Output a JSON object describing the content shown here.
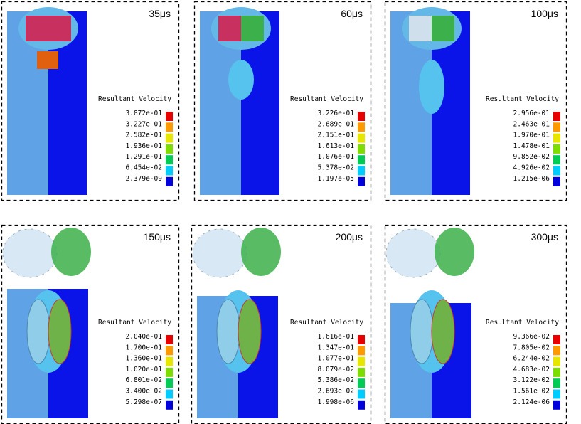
{
  "panels": [
    {
      "time": "35μs",
      "legend": {
        "title": "Resultant Velocity",
        "labels": [
          "3.872e-01",
          "3.227e-01",
          "2.582e-01",
          "1.936e-01",
          "1.291e-01",
          "6.454e-02",
          "2.379e-09"
        ]
      }
    },
    {
      "time": "60μs",
      "legend": {
        "title": "Resultant Velocity",
        "labels": [
          "3.226e-01",
          "2.689e-01",
          "2.151e-01",
          "1.613e-01",
          "1.076e-01",
          "5.378e-02",
          "1.197e-05"
        ]
      }
    },
    {
      "time": "100μs",
      "legend": {
        "title": "Resultant Velocity",
        "labels": [
          "2.956e-01",
          "2.463e-01",
          "1.970e-01",
          "1.478e-01",
          "9.852e-02",
          "4.926e-02",
          "1.215e-06"
        ]
      }
    },
    {
      "time": "150μs",
      "legend": {
        "title": "Resultant Velocity",
        "labels": [
          "2.040e-01",
          "1.700e-01",
          "1.360e-01",
          "1.020e-01",
          "6.801e-02",
          "3.400e-02",
          "5.298e-07"
        ]
      }
    },
    {
      "time": "200μs",
      "legend": {
        "title": "Resultant Velocity",
        "labels": [
          "1.616e-01",
          "1.347e-01",
          "1.077e-01",
          "8.079e-02",
          "5.386e-02",
          "2.693e-02",
          "1.998e-06"
        ]
      }
    },
    {
      "time": "300μs",
      "legend": {
        "title": "Resultant Velocity",
        "labels": [
          "9.366e-02",
          "7.805e-02",
          "6.244e-02",
          "4.683e-02",
          "3.122e-02",
          "1.561e-02",
          "2.124e-06"
        ]
      }
    }
  ]
}
